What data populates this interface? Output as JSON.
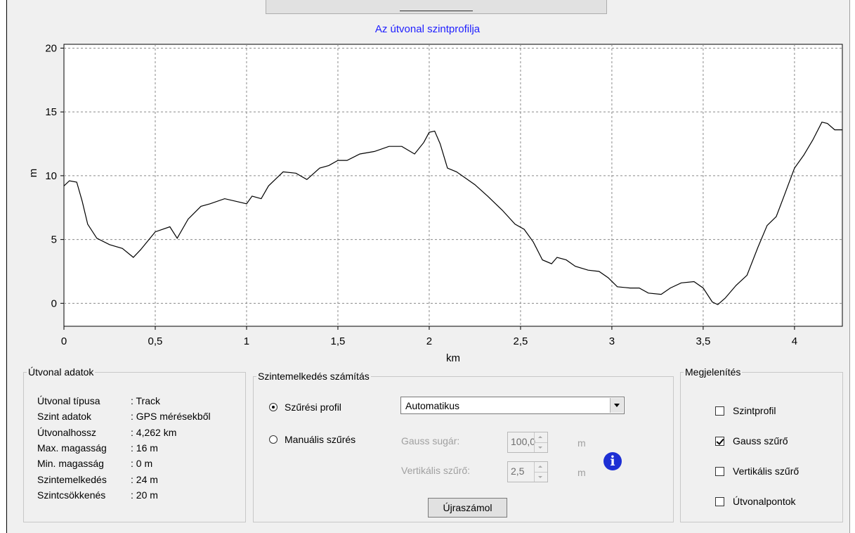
{
  "chart_data": {
    "type": "line",
    "title": "Az útvonal szintprofilja",
    "xlabel": "km",
    "ylabel": "m",
    "xlim": [
      0,
      4.262
    ],
    "ylim": [
      -1.8,
      20.3
    ],
    "x_ticks": [
      "0",
      "0,5",
      "1",
      "1,5",
      "2",
      "2,5",
      "3",
      "3,5",
      "4"
    ],
    "y_ticks": [
      "0",
      "5",
      "10",
      "15",
      "20"
    ],
    "grid": true,
    "series": [
      {
        "x": [
          0,
          0.03,
          0.07,
          0.1,
          0.13,
          0.18,
          0.25,
          0.32,
          0.38,
          0.42,
          0.5,
          0.58,
          0.62,
          0.68,
          0.75,
          0.8,
          0.88,
          0.94,
          1.0,
          1.03,
          1.08,
          1.12,
          1.2,
          1.27,
          1.33,
          1.4,
          1.45,
          1.5,
          1.55,
          1.62,
          1.7,
          1.78,
          1.85,
          1.92,
          1.97,
          2.0,
          2.03,
          2.06,
          2.1,
          2.15,
          2.25,
          2.32,
          2.4,
          2.47,
          2.52,
          2.57,
          2.62,
          2.67,
          2.7,
          2.75,
          2.8,
          2.87,
          2.93,
          2.98,
          3.03,
          3.1,
          3.15,
          3.2,
          3.27,
          3.32,
          3.38,
          3.45,
          3.5,
          3.55,
          3.58,
          3.62,
          3.68,
          3.74,
          3.8,
          3.85,
          3.9,
          3.94,
          4.0,
          4.05,
          4.1,
          4.15,
          4.18,
          4.22,
          4.262
        ],
        "y": [
          9.2,
          9.6,
          9.5,
          8.0,
          6.2,
          5.1,
          4.6,
          4.3,
          3.6,
          4.2,
          5.6,
          6.0,
          5.1,
          6.6,
          7.6,
          7.8,
          8.2,
          8.0,
          7.8,
          8.4,
          8.2,
          9.2,
          10.3,
          10.2,
          9.7,
          10.6,
          10.8,
          11.2,
          11.2,
          11.7,
          11.9,
          12.3,
          12.3,
          11.7,
          12.6,
          13.4,
          13.5,
          12.5,
          10.6,
          10.3,
          9.3,
          8.4,
          7.3,
          6.2,
          5.8,
          4.8,
          3.4,
          3.1,
          3.6,
          3.4,
          2.9,
          2.6,
          2.5,
          2.0,
          1.3,
          1.2,
          1.2,
          0.8,
          0.7,
          1.2,
          1.6,
          1.7,
          1.2,
          0.1,
          -0.1,
          0.4,
          1.4,
          2.2,
          4.4,
          6.1,
          6.8,
          8.3,
          10.6,
          11.6,
          12.8,
          14.2,
          14.1,
          13.6,
          13.6
        ]
      }
    ]
  },
  "route_data": {
    "legend": "Útvonal adatok",
    "rows": [
      {
        "label": "Útvonal típusa",
        "value": ": Track"
      },
      {
        "label": "Szint adatok",
        "value": ": GPS mérésekből"
      },
      {
        "label": "Útvonalhossz",
        "value": ": 4,262 km"
      },
      {
        "label": "Max. magasság",
        "value": ": 16 m"
      },
      {
        "label": "Min. magasság",
        "value": ": 0 m"
      },
      {
        "label": "Szintemelkedés",
        "value": ": 24 m"
      },
      {
        "label": "Szintcsökkenés",
        "value": ": 20 m"
      }
    ]
  },
  "elevation_calc": {
    "legend": "Szintemelkedés számítás",
    "filter_profile_label": "Szűrési profil",
    "filter_profile_selected": true,
    "manual_filter_label": "Manuális szűrés",
    "manual_filter_selected": false,
    "profile_value": "Automatikus",
    "gauss_label": "Gauss sugár:",
    "gauss_value": "100,0",
    "gauss_unit": "m",
    "vertical_label": "Vertikális szűrő:",
    "vertical_value": "2,5",
    "vertical_unit": "m",
    "recalc_label": "Újraszámol",
    "info_glyph": "i"
  },
  "display": {
    "legend": "Megjelenítés",
    "options": [
      {
        "label": "Szintprofil",
        "checked": false
      },
      {
        "label": "Gauss szűrő",
        "checked": true
      },
      {
        "label": "Vertikális szűrő",
        "checked": false
      },
      {
        "label": "Útvonalpontok",
        "checked": false
      }
    ]
  }
}
